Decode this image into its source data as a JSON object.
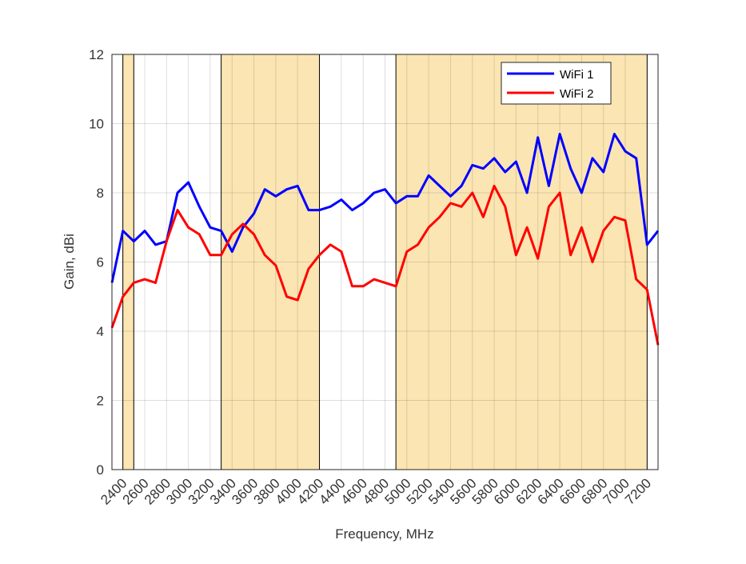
{
  "chart_data": {
    "type": "line",
    "x_label": "Frequency, MHz",
    "y_label": "Gain, dBi",
    "x": [
      2300,
      2400,
      2500,
      2600,
      2700,
      2800,
      2900,
      3000,
      3100,
      3200,
      3300,
      3400,
      3500,
      3600,
      3700,
      3800,
      3900,
      4000,
      4100,
      4200,
      4300,
      4400,
      4500,
      4600,
      4700,
      4800,
      4900,
      5000,
      5100,
      5200,
      5300,
      5400,
      5500,
      5600,
      5700,
      5800,
      5900,
      6000,
      6100,
      6200,
      6300,
      6400,
      6500,
      6600,
      6700,
      6800,
      6900,
      7000,
      7100,
      7200,
      7300
    ],
    "series": [
      {
        "name": "WiFi 1",
        "color": "#0000ff",
        "values": [
          5.4,
          6.9,
          6.6,
          6.9,
          6.5,
          6.6,
          8.0,
          8.3,
          7.6,
          7.0,
          6.9,
          6.3,
          7.0,
          7.4,
          8.1,
          7.9,
          8.1,
          8.2,
          7.5,
          7.5,
          7.6,
          7.8,
          7.5,
          7.7,
          8.0,
          8.1,
          7.7,
          7.9,
          7.9,
          8.5,
          8.2,
          7.9,
          8.2,
          8.8,
          8.7,
          9.0,
          8.6,
          8.9,
          8.0,
          9.6,
          8.2,
          9.7,
          8.7,
          8.0,
          9.0,
          8.6,
          9.7,
          9.2,
          9.0,
          6.5,
          6.9
        ]
      },
      {
        "name": "WiFi 2",
        "color": "#ff0000",
        "values": [
          4.1,
          5.0,
          5.4,
          5.5,
          5.4,
          6.6,
          7.5,
          7.0,
          6.8,
          6.2,
          6.2,
          6.8,
          7.1,
          6.8,
          6.2,
          5.9,
          5.0,
          4.9,
          5.8,
          6.2,
          6.5,
          6.3,
          5.3,
          5.3,
          5.5,
          5.4,
          5.3,
          6.3,
          6.5,
          7.0,
          7.3,
          7.7,
          7.6,
          8.0,
          7.3,
          8.2,
          7.6,
          6.2,
          7.0,
          6.1,
          7.6,
          8.0,
          6.2,
          7.0,
          6.0,
          6.9,
          7.3,
          7.2,
          5.5,
          5.2,
          3.6
        ]
      }
    ],
    "bands": [
      [
        2400,
        2500
      ],
      [
        3300,
        4200
      ],
      [
        4900,
        7200
      ]
    ],
    "band_color": "#fbe5b2",
    "xlim": [
      2300,
      7300
    ],
    "xticks": [
      2400,
      2600,
      2800,
      3000,
      3200,
      3400,
      3600,
      3800,
      4000,
      4200,
      4400,
      4600,
      4800,
      5000,
      5200,
      5400,
      5600,
      5800,
      6000,
      6200,
      6400,
      6600,
      6800,
      7000,
      7200
    ],
    "ylim": [
      0,
      12
    ],
    "yticks": [
      0,
      2,
      4,
      6,
      8,
      10,
      12
    ],
    "grid": true,
    "legend": "upper right"
  }
}
